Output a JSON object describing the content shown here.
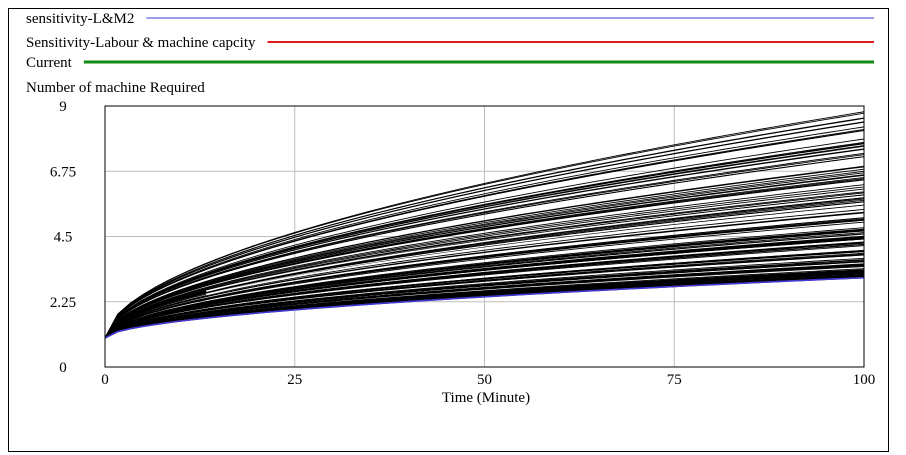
{
  "legend": [
    {
      "label": "sensitivity-L&M2",
      "color": "#3a3ad6",
      "width": 1
    },
    {
      "label": "Sensitivity-Labour & machine capcity",
      "color": "#e41a1a",
      "width": 2
    },
    {
      "label": "Current",
      "color": "#118a11",
      "width": 3
    }
  ],
  "chart_data": {
    "type": "line",
    "title": "Number of machine Required",
    "xlabel": "Time (Minute)",
    "ylabel": "",
    "xlim": [
      0,
      100
    ],
    "ylim": [
      0,
      9
    ],
    "x_ticks": [
      "0",
      "25",
      "50",
      "75",
      "100"
    ],
    "y_ticks": [
      "0",
      "2.25",
      "4.5",
      "6.75",
      "9"
    ],
    "grid": true,
    "sensitivity_run_count": 150,
    "sensitivity_endpoint_range": [
      3.1,
      8.9
    ],
    "series": [
      {
        "name": "sensitivity-L&M2",
        "x": [
          0,
          25,
          50,
          75,
          100
        ],
        "values": [
          1,
          1.75,
          2.33,
          2.74,
          3.08
        ]
      },
      {
        "name": "Sensitivity-Labour & machine capcity",
        "x": [
          0,
          25,
          50,
          75,
          100
        ],
        "values": [
          1,
          1.75,
          2.33,
          2.74,
          3.08
        ]
      },
      {
        "name": "Current",
        "x": [
          0,
          25,
          50,
          75,
          100
        ],
        "values": [
          1,
          1.75,
          2.33,
          2.74,
          3.08
        ]
      }
    ]
  }
}
